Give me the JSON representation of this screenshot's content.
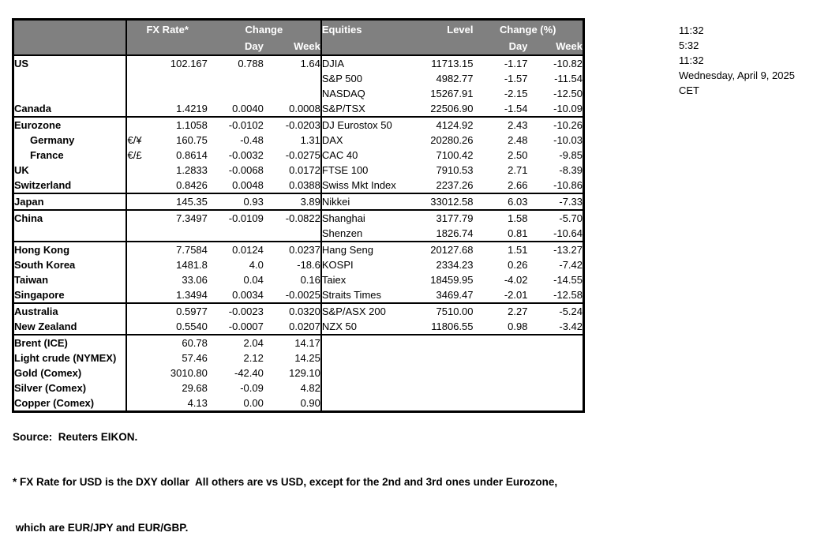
{
  "colors": {
    "header_bg": "#808080",
    "header_text": "#ffffff",
    "border": "#000000",
    "body_text": "#000000"
  },
  "header": {
    "fx_rate": "FX Rate*",
    "change": "Change",
    "day": "Day",
    "week": "Week",
    "equities": "Equities",
    "level": "Level",
    "change_pct": "Change (%)",
    "day2": "Day",
    "week2": "Week"
  },
  "rows": [
    {
      "name": "US",
      "pair": "",
      "fx": "102.167",
      "day": "0.788",
      "week": "1.64",
      "eq": "DJIA",
      "level": "11713.15",
      "eq_day": "-1.17",
      "eq_week": "-10.82",
      "divider": false,
      "indent": false
    },
    {
      "name": "",
      "pair": "",
      "fx": "",
      "day": "",
      "week": "",
      "eq": "S&P 500",
      "level": "4982.77",
      "eq_day": "-1.57",
      "eq_week": "-11.54",
      "divider": false,
      "indent": false
    },
    {
      "name": "",
      "pair": "",
      "fx": "",
      "day": "",
      "week": "",
      "eq": "NASDAQ",
      "level": "15267.91",
      "eq_day": "-2.15",
      "eq_week": "-12.50",
      "divider": false,
      "indent": false
    },
    {
      "name": "Canada",
      "pair": "",
      "fx": "1.4219",
      "day": "0.0040",
      "week": "0.0008",
      "eq": "S&P/TSX",
      "level": "22506.90",
      "eq_day": "-1.54",
      "eq_week": "-10.09",
      "divider": false,
      "indent": false
    },
    {
      "name": "Eurozone",
      "pair": "",
      "fx": "1.1058",
      "day": "-0.0102",
      "week": "-0.0203",
      "eq": "DJ Eurostox 50",
      "level": "4124.92",
      "eq_day": "2.43",
      "eq_week": "-10.26",
      "divider": true,
      "indent": false
    },
    {
      "name": "Germany",
      "pair": "€/¥",
      "fx": "160.75",
      "day": "-0.48",
      "week": "1.31",
      "eq": "DAX",
      "level": "20280.26",
      "eq_day": "2.48",
      "eq_week": "-10.03",
      "divider": false,
      "indent": true
    },
    {
      "name": "France",
      "pair": "€/£",
      "fx": "0.8614",
      "day": "-0.0032",
      "week": "-0.0275",
      "eq": "CAC 40",
      "level": "7100.42",
      "eq_day": "2.50",
      "eq_week": "-9.85",
      "divider": false,
      "indent": true
    },
    {
      "name": "UK",
      "pair": "",
      "fx": "1.2833",
      "day": "-0.0068",
      "week": "0.0172",
      "eq": "FTSE 100",
      "level": "7910.53",
      "eq_day": "2.71",
      "eq_week": "-8.39",
      "divider": false,
      "indent": false
    },
    {
      "name": "Switzerland",
      "pair": "",
      "fx": "0.8426",
      "day": "0.0048",
      "week": "0.0388",
      "eq": "Swiss Mkt Index",
      "level": "2237.26",
      "eq_day": "2.66",
      "eq_week": "-10.86",
      "divider": false,
      "indent": false
    },
    {
      "name": "Japan",
      "pair": "",
      "fx": "145.35",
      "day": "0.93",
      "week": "3.89",
      "eq": "Nikkei",
      "level": "33012.58",
      "eq_day": "6.03",
      "eq_week": "-7.33",
      "divider": true,
      "indent": false
    },
    {
      "name": "China",
      "pair": "",
      "fx": "7.3497",
      "day": "-0.0109",
      "week": "-0.0822",
      "eq": "Shanghai",
      "level": "3177.79",
      "eq_day": "1.58",
      "eq_week": "-5.70",
      "divider": true,
      "indent": false
    },
    {
      "name": "",
      "pair": "",
      "fx": "",
      "day": "",
      "week": "",
      "eq": "Shenzen",
      "level": "1826.74",
      "eq_day": "0.81",
      "eq_week": "-10.64",
      "divider": false,
      "indent": false
    },
    {
      "name": "Hong Kong",
      "pair": "",
      "fx": "7.7584",
      "day": "0.0124",
      "week": "0.0237",
      "eq": "Hang Seng",
      "level": "20127.68",
      "eq_day": "1.51",
      "eq_week": "-13.27",
      "divider": true,
      "indent": false
    },
    {
      "name": "South Korea",
      "pair": "",
      "fx": "1481.8",
      "day": "4.0",
      "week": "-18.6",
      "eq": "KOSPI",
      "level": "2334.23",
      "eq_day": "0.26",
      "eq_week": "-7.42",
      "divider": false,
      "indent": false
    },
    {
      "name": "Taiwan",
      "pair": "",
      "fx": "33.06",
      "day": "0.04",
      "week": "0.16",
      "eq": "Taiex",
      "level": "18459.95",
      "eq_day": "-4.02",
      "eq_week": "-14.55",
      "divider": false,
      "indent": false
    },
    {
      "name": "Singapore",
      "pair": "",
      "fx": "1.3494",
      "day": "0.0034",
      "week": "-0.0025",
      "eq": "Straits Times",
      "level": "3469.47",
      "eq_day": "-2.01",
      "eq_week": "-12.58",
      "divider": false,
      "indent": false
    },
    {
      "name": "Australia",
      "pair": "",
      "fx": "0.5977",
      "day": "-0.0023",
      "week": "0.0320",
      "eq": "S&P/ASX 200",
      "level": "7510.00",
      "eq_day": "2.27",
      "eq_week": "-5.24",
      "divider": true,
      "indent": false
    },
    {
      "name": "New Zealand",
      "pair": "",
      "fx": "0.5540",
      "day": "-0.0007",
      "week": "0.0207",
      "eq": "NZX 50",
      "level": "11806.55",
      "eq_day": "0.98",
      "eq_week": "-3.42",
      "divider": false,
      "indent": false
    },
    {
      "name": "Brent (ICE)",
      "pair": "",
      "fx": "60.78",
      "day": "2.04",
      "week": "14.17",
      "eq": "",
      "level": "",
      "eq_day": "",
      "eq_week": "",
      "divider": true,
      "indent": false
    },
    {
      "name": "Light crude (NYMEX)",
      "pair": "",
      "fx": "57.46",
      "day": "2.12",
      "week": "14.25",
      "eq": "",
      "level": "",
      "eq_day": "",
      "eq_week": "",
      "divider": false,
      "indent": false
    },
    {
      "name": "Gold (Comex)",
      "pair": "",
      "fx": "3010.80",
      "day": "-42.40",
      "week": "129.10",
      "eq": "",
      "level": "",
      "eq_day": "",
      "eq_week": "",
      "divider": false,
      "indent": false
    },
    {
      "name": "Silver (Comex)",
      "pair": "",
      "fx": "29.68",
      "day": "-0.09",
      "week": "4.82",
      "eq": "",
      "level": "",
      "eq_day": "",
      "eq_week": "",
      "divider": false,
      "indent": false
    },
    {
      "name": "Copper (Comex)",
      "pair": "",
      "fx": "4.13",
      "day": "0.00",
      "week": "0.90",
      "eq": "",
      "level": "",
      "eq_day": "",
      "eq_week": "",
      "divider": false,
      "indent": false
    }
  ],
  "info": {
    "time1": "11:32",
    "time2": "5:32",
    "time3": "11:32",
    "date": "Wednesday, April 9, 2025",
    "timezone": "CET"
  },
  "footer": {
    "source": "Source:  Reuters EIKON.",
    "note1": "* FX Rate for USD is the DXY dollar  All others are vs USD, except for the 2nd and 3rd ones under Eurozone,",
    "note2": " which are EUR/JPY and EUR/GBP."
  }
}
